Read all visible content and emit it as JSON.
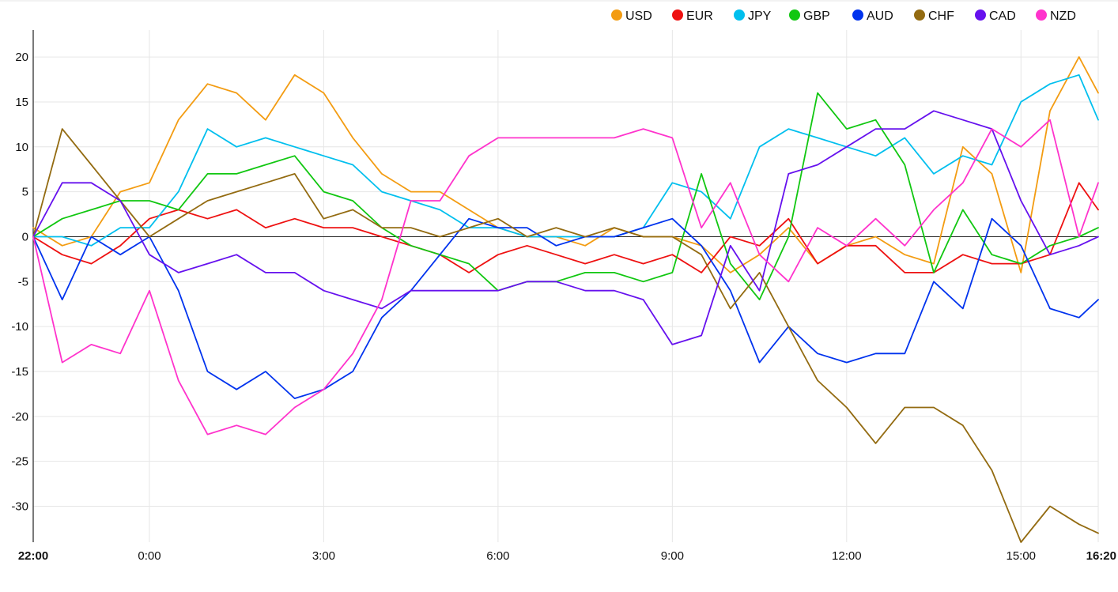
{
  "chart_data": {
    "type": "line",
    "title": "",
    "xlabel": "",
    "ylabel": "",
    "ylim": [
      -34,
      23
    ],
    "yticks": [
      20,
      15,
      10,
      5,
      0,
      -5,
      -10,
      -15,
      -20,
      -25,
      -30
    ],
    "xticks": [
      {
        "label": "22:00",
        "x": 0,
        "bold": true
      },
      {
        "label": "0:00",
        "x": 2,
        "bold": false
      },
      {
        "label": "3:00",
        "x": 5,
        "bold": false
      },
      {
        "label": "6:00",
        "x": 8,
        "bold": false
      },
      {
        "label": "9:00",
        "x": 11,
        "bold": false
      },
      {
        "label": "12:00",
        "x": 14,
        "bold": false
      },
      {
        "label": "15:00",
        "x": 17,
        "bold": false
      },
      {
        "label": "16:20",
        "x": 18.33,
        "bold": true
      }
    ],
    "x_hours_since_start": [
      0,
      0.5,
      1,
      1.5,
      2,
      2.5,
      3,
      3.5,
      4,
      4.5,
      5,
      5.5,
      6,
      6.5,
      7,
      7.5,
      8,
      8.5,
      9,
      9.5,
      10,
      10.5,
      11,
      11.5,
      12,
      12.5,
      13,
      13.5,
      14,
      14.5,
      15,
      15.5,
      16,
      16.5,
      17,
      17.5,
      18,
      18.33
    ],
    "legend_position": "top-right",
    "grid": true,
    "series": [
      {
        "name": "USD",
        "color": "#f39c12",
        "values": [
          1,
          -1,
          0,
          5,
          6,
          13,
          17,
          16,
          13,
          18,
          16,
          11,
          7,
          5,
          5,
          3,
          1,
          0,
          0,
          -1,
          1,
          0,
          0,
          -1,
          -4,
          -2,
          1,
          -3,
          -1,
          0,
          -2,
          -3,
          10,
          7,
          -4,
          14,
          20,
          16
        ]
      },
      {
        "name": "EUR",
        "color": "#ee1111",
        "values": [
          0,
          -2,
          -3,
          -1,
          2,
          3,
          2,
          3,
          1,
          2,
          1,
          1,
          0,
          -1,
          -2,
          -4,
          -2,
          -1,
          -2,
          -3,
          -2,
          -3,
          -2,
          -4,
          0,
          -1,
          2,
          -3,
          -1,
          -1,
          -4,
          -4,
          -2,
          -3,
          -3,
          -2,
          6,
          3
        ]
      },
      {
        "name": "JPY",
        "color": "#00bfee",
        "values": [
          0,
          0,
          -1,
          1,
          1,
          5,
          12,
          10,
          11,
          10,
          9,
          8,
          5,
          4,
          3,
          1,
          1,
          0,
          0,
          0,
          0,
          1,
          6,
          5,
          2,
          10,
          12,
          11,
          10,
          9,
          11,
          7,
          9,
          8,
          15,
          17,
          18,
          13
        ]
      },
      {
        "name": "GBP",
        "color": "#11c711",
        "values": [
          0,
          2,
          3,
          4,
          4,
          3,
          7,
          7,
          8,
          9,
          5,
          4,
          1,
          -1,
          -2,
          -3,
          -6,
          -5,
          -5,
          -4,
          -4,
          -5,
          -4,
          7,
          -3,
          -7,
          0,
          16,
          12,
          13,
          8,
          -4,
          3,
          -2,
          -3,
          -1,
          0,
          1
        ]
      },
      {
        "name": "AUD",
        "color": "#0033ee",
        "values": [
          0,
          -7,
          0,
          -2,
          0,
          -6,
          -15,
          -17,
          -15,
          -18,
          -17,
          -15,
          -9,
          -6,
          -2,
          2,
          1,
          1,
          -1,
          0,
          0,
          1,
          2,
          -1,
          -6,
          -14,
          -10,
          -13,
          -14,
          -13,
          -13,
          -5,
          -8,
          2,
          -1,
          -8,
          -9,
          -7
        ]
      },
      {
        "name": "CHF",
        "color": "#936b11",
        "values": [
          0,
          12,
          8,
          4,
          0,
          2,
          4,
          5,
          6,
          7,
          2,
          3,
          1,
          1,
          0,
          1,
          2,
          0,
          1,
          0,
          1,
          0,
          0,
          -2,
          -8,
          -4,
          -10,
          -16,
          -19,
          -23,
          -19,
          -19,
          -21,
          -26,
          -34,
          -30,
          -32,
          -33
        ]
      },
      {
        "name": "CAD",
        "color": "#6611ee",
        "values": [
          0,
          6,
          6,
          4,
          -2,
          -4,
          -3,
          -2,
          -4,
          -4,
          -6,
          -7,
          -8,
          -6,
          -6,
          -6,
          -6,
          -5,
          -5,
          -6,
          -6,
          -7,
          -12,
          -11,
          -1,
          -6,
          7,
          8,
          10,
          12,
          12,
          14,
          13,
          12,
          4,
          -2,
          -1,
          0
        ]
      },
      {
        "name": "NZD",
        "color": "#ff33cc",
        "values": [
          0,
          -14,
          -12,
          -13,
          -6,
          -16,
          -22,
          -21,
          -22,
          -19,
          -17,
          -13,
          -7,
          4,
          4,
          9,
          11,
          11,
          11,
          11,
          11,
          12,
          11,
          1,
          6,
          -2,
          -5,
          1,
          -1,
          2,
          -1,
          3,
          6,
          12,
          10,
          13,
          0,
          6
        ]
      }
    ]
  }
}
